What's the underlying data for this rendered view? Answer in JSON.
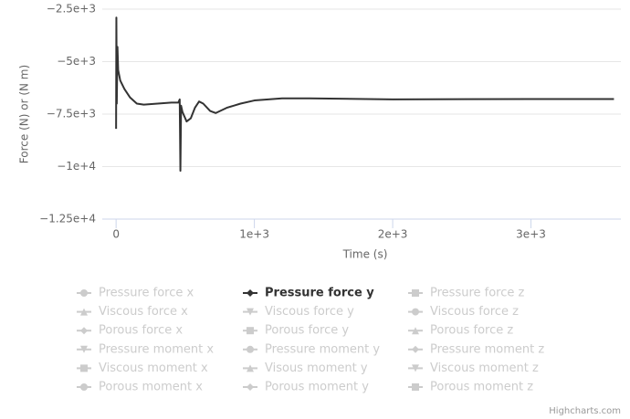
{
  "chart_data": {
    "type": "line",
    "y_axis_label": "Force (N) or (N m)",
    "x_axis_label": "Time (s)",
    "credits": "Highcharts.com",
    "xlim": [
      -100,
      3650
    ],
    "ylim": [
      -12500,
      -2500
    ],
    "xticks": [
      0,
      {
        "value": 1000,
        "label": "1e+3"
      },
      {
        "value": 2000,
        "label": "2e+3"
      },
      {
        "value": 3000,
        "label": "3e+3"
      }
    ],
    "yticks": [
      {
        "value": -2500,
        "label": "−2.5e+3"
      },
      {
        "value": -5000,
        "label": "−5e+3"
      },
      {
        "value": -7500,
        "label": "−7.5e+3"
      },
      {
        "value": -10000,
        "label": "−1e+4"
      },
      {
        "value": -12500,
        "label": "−1.25e+4"
      }
    ],
    "grid": true,
    "hidden_color": "#cccccc",
    "series": [
      {
        "name": "Pressure force x",
        "symbol": "circle",
        "visible": false
      },
      {
        "name": "Pressure force y",
        "symbol": "diamond",
        "visible": true,
        "color": "#333333",
        "x": [
          0,
          2,
          5,
          10,
          15,
          30,
          60,
          100,
          150,
          200,
          300,
          400,
          450,
          460,
          465,
          470,
          480,
          510,
          540,
          570,
          600,
          630,
          680,
          720,
          800,
          900,
          1000,
          1100,
          1200,
          1400,
          2000,
          3000,
          3600
        ],
        "values": [
          -8200,
          -2900,
          -7000,
          -4300,
          -5400,
          -5900,
          -6300,
          -6700,
          -7000,
          -7050,
          -7000,
          -6950,
          -6950,
          -6800,
          -10200,
          -7100,
          -7400,
          -7850,
          -7700,
          -7200,
          -6900,
          -7000,
          -7350,
          -7450,
          -7200,
          -7000,
          -6850,
          -6800,
          -6750,
          -6750,
          -6800,
          -6780,
          -6780
        ]
      },
      {
        "name": "Pressure force z",
        "symbol": "square",
        "visible": false
      },
      {
        "name": "Viscous force x",
        "symbol": "triangle",
        "visible": false
      },
      {
        "name": "Viscous force y",
        "symbol": "triangle-down",
        "visible": false
      },
      {
        "name": "Viscous force z",
        "symbol": "circle",
        "visible": false
      },
      {
        "name": "Porous force x",
        "symbol": "diamond",
        "visible": false
      },
      {
        "name": "Porous force y",
        "symbol": "square",
        "visible": false
      },
      {
        "name": "Porous force z",
        "symbol": "triangle",
        "visible": false
      },
      {
        "name": "Pressure moment x",
        "symbol": "triangle-down",
        "visible": false
      },
      {
        "name": "Pressure moment y",
        "symbol": "circle",
        "visible": false
      },
      {
        "name": "Pressure moment z",
        "symbol": "diamond",
        "visible": false
      },
      {
        "name": "Viscous moment x",
        "symbol": "square",
        "visible": false
      },
      {
        "name": "Visous moment y",
        "symbol": "triangle",
        "visible": false
      },
      {
        "name": "Viscous moment z",
        "symbol": "triangle-down",
        "visible": false
      },
      {
        "name": "Porous moment x",
        "symbol": "circle",
        "visible": false
      },
      {
        "name": "Porous moment y",
        "symbol": "diamond",
        "visible": false
      },
      {
        "name": "Porous moment z",
        "symbol": "square",
        "visible": false
      }
    ]
  }
}
